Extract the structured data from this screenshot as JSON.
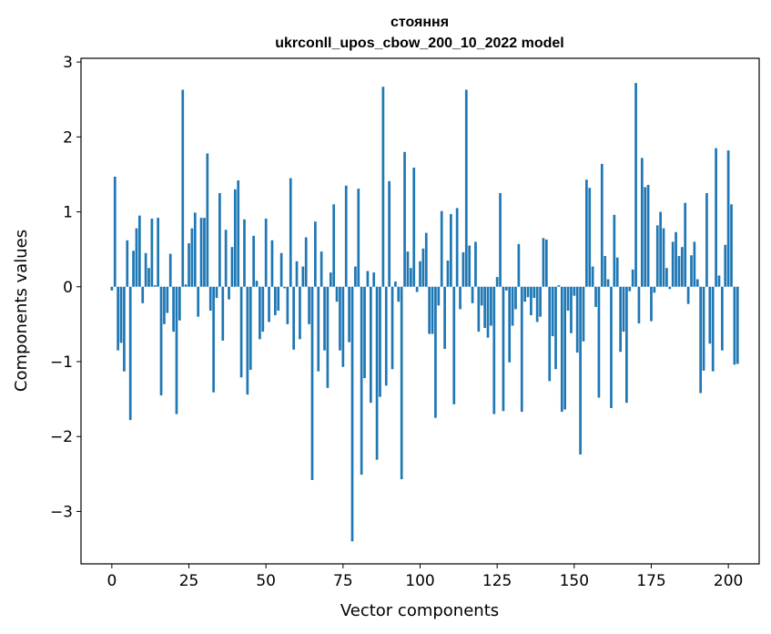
{
  "chart_data": {
    "type": "bar",
    "title_line1": "стояння",
    "title_line2": "ukrconll_upos_cbow_200_10_2022 model",
    "xlabel": "Vector components",
    "ylabel": "Components values",
    "xlim": [
      -10,
      210
    ],
    "ylim": [
      -3.7,
      3.05
    ],
    "x_ticks": [
      0,
      25,
      50,
      75,
      100,
      125,
      150,
      175,
      200
    ],
    "y_ticks": [
      -3,
      -2,
      -1,
      0,
      1,
      2,
      3
    ],
    "x_tick_labels": [
      "0",
      "25",
      "50",
      "75",
      "100",
      "125",
      "150",
      "175",
      "200"
    ],
    "y_tick_labels": [
      "−3",
      "−2",
      "−1",
      "0",
      "1",
      "2",
      "3"
    ],
    "grid": false,
    "bar_color": "#1f77b4",
    "values": [
      -0.05,
      1.47,
      -0.85,
      -0.75,
      -1.13,
      0.62,
      -1.78,
      0.48,
      0.78,
      0.95,
      -0.22,
      0.45,
      0.25,
      0.91,
      0.02,
      0.92,
      -1.45,
      -0.5,
      -0.35,
      0.44,
      -0.6,
      -1.7,
      -0.45,
      2.63,
      0.03,
      0.58,
      0.78,
      0.99,
      -0.4,
      0.92,
      0.92,
      1.78,
      -0.32,
      -1.41,
      -0.15,
      1.25,
      -0.72,
      0.76,
      -0.17,
      0.53,
      1.3,
      1.42,
      -1.21,
      0.9,
      -1.44,
      -1.11,
      0.68,
      0.08,
      -0.7,
      -0.6,
      0.91,
      -0.47,
      0.62,
      -0.38,
      -0.32,
      0.45,
      -0.02,
      -0.5,
      1.45,
      -0.84,
      0.34,
      -0.7,
      0.27,
      0.66,
      -0.5,
      -2.58,
      0.87,
      -1.13,
      0.47,
      -0.85,
      -1.35,
      0.19,
      1.1,
      -0.2,
      -0.85,
      -1.07,
      1.35,
      -0.74,
      -3.4,
      0.27,
      1.31,
      -2.51,
      -1.22,
      0.21,
      -1.55,
      0.19,
      -2.31,
      -1.47,
      2.67,
      -1.32,
      1.41,
      -1.1,
      0.07,
      -0.2,
      -2.57,
      1.8,
      0.47,
      0.25,
      1.59,
      -0.07,
      0.34,
      0.51,
      0.72,
      -0.63,
      -0.63,
      -1.75,
      -0.25,
      1.01,
      -0.83,
      0.35,
      0.97,
      -1.57,
      1.05,
      -0.3,
      0.46,
      2.63,
      0.55,
      -0.22,
      0.6,
      -0.6,
      -0.25,
      -0.55,
      -0.68,
      -0.52,
      -1.7,
      0.13,
      1.25,
      -1.66,
      -0.05,
      -1.01,
      -0.52,
      -0.3,
      0.57,
      -1.67,
      -0.2,
      -0.14,
      -0.38,
      -0.15,
      -0.47,
      -0.4,
      0.65,
      0.63,
      -1.26,
      -0.66,
      -1.1,
      0.02,
      -1.67,
      -1.64,
      -0.32,
      -0.62,
      -0.12,
      -0.88,
      -2.24,
      -0.73,
      1.43,
      1.32,
      0.27,
      -0.27,
      -1.48,
      1.64,
      0.41,
      0.1,
      -1.62,
      0.96,
      0.39,
      -0.87,
      -0.6,
      -1.55,
      -0.06,
      0.23,
      2.72,
      -0.49,
      1.72,
      1.33,
      1.36,
      -0.46,
      -0.08,
      0.82,
      1.0,
      0.78,
      0.25,
      -0.03,
      0.6,
      0.73,
      0.41,
      0.53,
      1.12,
      -0.23,
      0.42,
      0.6,
      0.1,
      -1.42,
      -1.12,
      1.25,
      -0.76,
      -1.13,
      1.85,
      0.15,
      -0.85,
      0.56,
      1.82,
      1.1,
      -1.04,
      -1.03
    ]
  }
}
